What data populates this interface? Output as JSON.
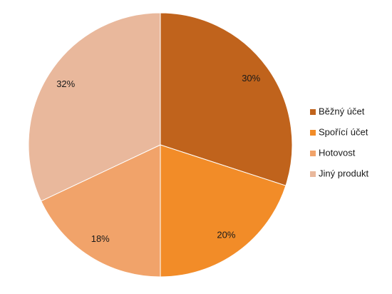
{
  "chart_data": {
    "type": "pie",
    "categories": [
      "Běžný účet",
      "Spořící účet",
      "Hotovost",
      "Jiný produkt"
    ],
    "values": [
      30,
      20,
      18,
      32
    ],
    "value_labels": [
      "30%",
      "20%",
      "18%",
      "32%"
    ],
    "colors": [
      "#c0631c",
      "#f28c28",
      "#f1a36a",
      "#e9b89c"
    ],
    "legend": "right"
  }
}
